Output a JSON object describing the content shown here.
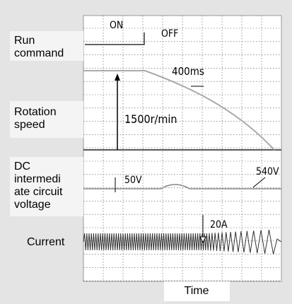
{
  "labels": {
    "run": "Run\ncommand",
    "speed": "Rotation\nspeed",
    "dc": "DC\nintermedi\nate circuit\nvoltage",
    "current": "Current",
    "time": "Time"
  },
  "annotations": {
    "on": "ON",
    "off": "OFF",
    "interval": "400ms",
    "speed_scale": "1500r/min",
    "dc_scale": "50V",
    "dc_level": "540V",
    "current_scale": "20A"
  }
}
